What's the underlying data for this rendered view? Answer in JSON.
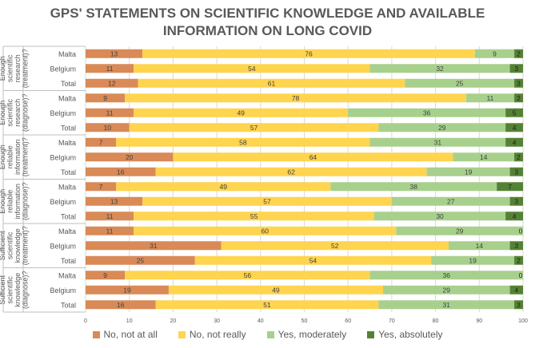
{
  "chart_data": {
    "type": "bar",
    "orientation": "horizontal",
    "stacked": true,
    "title_lines": [
      "GPS' STATEMENTS ON SCIENTIFIC KNOWLEDGE AND AVAILABLE",
      "INFORMATION ON LONG COVID"
    ],
    "xlim": [
      0,
      100
    ],
    "x_ticks": [
      "0",
      "10",
      "20",
      "30",
      "40",
      "50",
      "60",
      "70",
      "80",
      "90",
      "100"
    ],
    "series": [
      {
        "name": "No, not at all",
        "color": "#D98A57"
      },
      {
        "name": "No, not really",
        "color": "#FFD44F"
      },
      {
        "name": "Yes, moderately",
        "color": "#A8D08D"
      },
      {
        "name": "Yes, absolutely",
        "color": "#548235"
      }
    ],
    "groups": [
      {
        "label": [
          "Enough",
          "scientific",
          "research",
          "(treatment)?"
        ],
        "rows": [
          {
            "label": "Malta",
            "values": [
              13,
              76,
              9,
              2
            ]
          },
          {
            "label": "Belgium",
            "values": [
              11,
              54,
              32,
              3
            ]
          },
          {
            "label": "Total",
            "values": [
              12,
              61,
              25,
              3
            ]
          }
        ]
      },
      {
        "label": [
          "Enough",
          "scientific",
          "research",
          "(diagnose)?"
        ],
        "rows": [
          {
            "label": "Malta",
            "values": [
              9,
              78,
              11,
              2
            ]
          },
          {
            "label": "Belgium",
            "values": [
              11,
              49,
              36,
              5
            ]
          },
          {
            "label": "Total",
            "values": [
              10,
              57,
              29,
              4
            ]
          }
        ]
      },
      {
        "label": [
          "Enough",
          "reliable",
          "information",
          "(treatment)?"
        ],
        "rows": [
          {
            "label": "Malta",
            "values": [
              7,
              58,
              31,
              4
            ]
          },
          {
            "label": "Belgium",
            "values": [
              20,
              64,
              14,
              2
            ]
          },
          {
            "label": "Total",
            "values": [
              16,
              62,
              19,
              3
            ]
          }
        ]
      },
      {
        "label": [
          "Enough",
          "reliable",
          "information",
          "(diagnose)?"
        ],
        "rows": [
          {
            "label": "Malta",
            "values": [
              7,
              49,
              38,
              7
            ]
          },
          {
            "label": "Belgium",
            "values": [
              13,
              57,
              27,
              3
            ]
          },
          {
            "label": "Total",
            "values": [
              11,
              55,
              30,
              4
            ]
          }
        ]
      },
      {
        "label": [
          "Sufficient",
          "scientific",
          "knowledge",
          "(treatment)?"
        ],
        "rows": [
          {
            "label": "Malta",
            "values": [
              11,
              60,
              29,
              0
            ]
          },
          {
            "label": "Belgium",
            "values": [
              31,
              52,
              14,
              3
            ]
          },
          {
            "label": "Total",
            "values": [
              25,
              54,
              19,
              2
            ]
          }
        ]
      },
      {
        "label": [
          "Sufficient",
          "scientific",
          "knowledge",
          "(diagnose)?"
        ],
        "rows": [
          {
            "label": "Malta",
            "values": [
              9,
              56,
              36,
              0
            ]
          },
          {
            "label": "Belgium",
            "values": [
              19,
              49,
              29,
              4
            ]
          },
          {
            "label": "Total",
            "values": [
              16,
              51,
              31,
              3
            ]
          }
        ]
      }
    ]
  }
}
